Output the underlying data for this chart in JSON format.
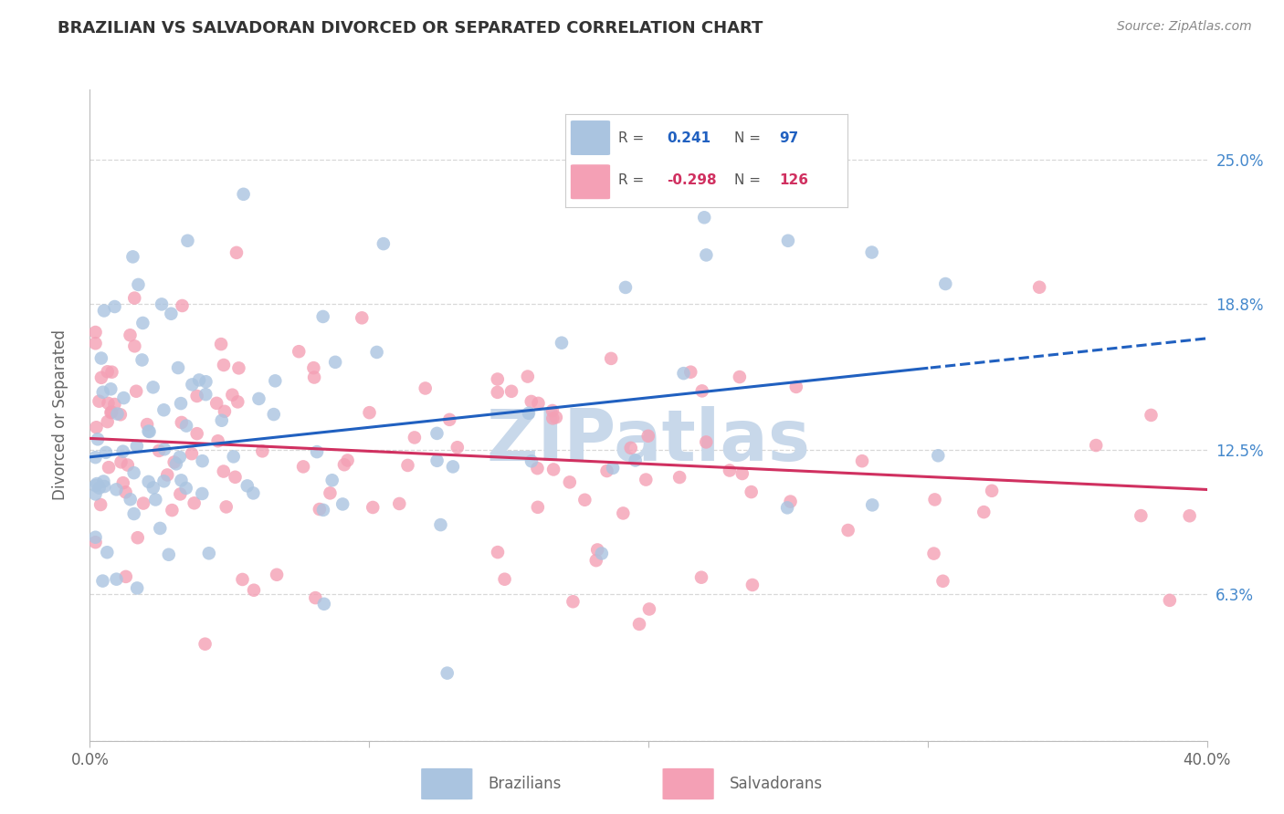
{
  "title": "BRAZILIAN VS SALVADORAN DIVORCED OR SEPARATED CORRELATION CHART",
  "source": "Source: ZipAtlas.com",
  "ylabel": "Divorced or Separated",
  "legend_label_blue": "Brazilians",
  "legend_label_pink": "Salvadorans",
  "R_blue": 0.241,
  "N_blue": 97,
  "R_pink": -0.298,
  "N_pink": 126,
  "xmin": 0.0,
  "xmax": 0.4,
  "ymin": 0.0,
  "ymax": 0.28,
  "yticks": [
    0.0,
    0.063,
    0.125,
    0.188,
    0.25
  ],
  "ytick_labels": [
    "",
    "6.3%",
    "12.5%",
    "18.8%",
    "25.0%"
  ],
  "xticks": [
    0.0,
    0.1,
    0.2,
    0.3,
    0.4
  ],
  "blue_scatter": "#aac4e0",
  "pink_scatter": "#f4a0b5",
  "line_blue": "#2060c0",
  "line_pink": "#d03060",
  "watermark": "ZIPatlas",
  "watermark_color": "#c8d8ea",
  "background": "#ffffff",
  "grid_color": "#d8d8d8",
  "blue_line_start_y": 0.122,
  "blue_line_end_y": 0.173,
  "blue_line_solid_end_x": 0.3,
  "pink_line_start_y": 0.13,
  "pink_line_end_y": 0.108,
  "tick_label_color": "#4488cc",
  "axis_color": "#bbbbbb",
  "title_color": "#333333",
  "source_color": "#888888",
  "label_color": "#666666"
}
